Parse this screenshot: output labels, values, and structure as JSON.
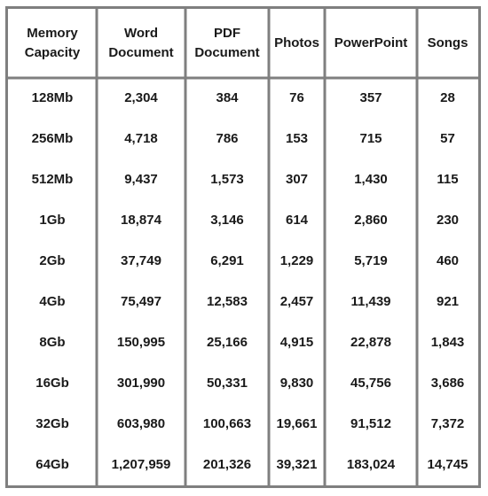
{
  "chart_data": {
    "type": "table",
    "columns": [
      [
        "Memory",
        "Capacity"
      ],
      [
        "Word",
        "Document"
      ],
      [
        "PDF",
        "Document"
      ],
      [
        "Photos"
      ],
      [
        "PowerPoint"
      ],
      [
        "Songs"
      ]
    ],
    "rows": [
      [
        "128Mb",
        "2,304",
        "384",
        "76",
        "357",
        "28"
      ],
      [
        "256Mb",
        "4,718",
        "786",
        "153",
        "715",
        "57"
      ],
      [
        "512Mb",
        "9,437",
        "1,573",
        "307",
        "1,430",
        "115"
      ],
      [
        "1Gb",
        "18,874",
        "3,146",
        "614",
        "2,860",
        "230"
      ],
      [
        "2Gb",
        "37,749",
        "6,291",
        "1,229",
        "5,719",
        "460"
      ],
      [
        "4Gb",
        "75,497",
        "12,583",
        "2,457",
        "11,439",
        "921"
      ],
      [
        "8Gb",
        "150,995",
        "25,166",
        "4,915",
        "22,878",
        "1,843"
      ],
      [
        "16Gb",
        "301,990",
        "50,331",
        "9,830",
        "45,756",
        "3,686"
      ],
      [
        "32Gb",
        "603,980",
        "100,663",
        "19,661",
        "91,512",
        "7,372"
      ],
      [
        "64Gb",
        "1,207,959",
        "201,326",
        "39,321",
        "183,024",
        "14,745"
      ]
    ],
    "colors": {
      "border": "#7f7f7f",
      "text": "#1a1a1a"
    }
  }
}
